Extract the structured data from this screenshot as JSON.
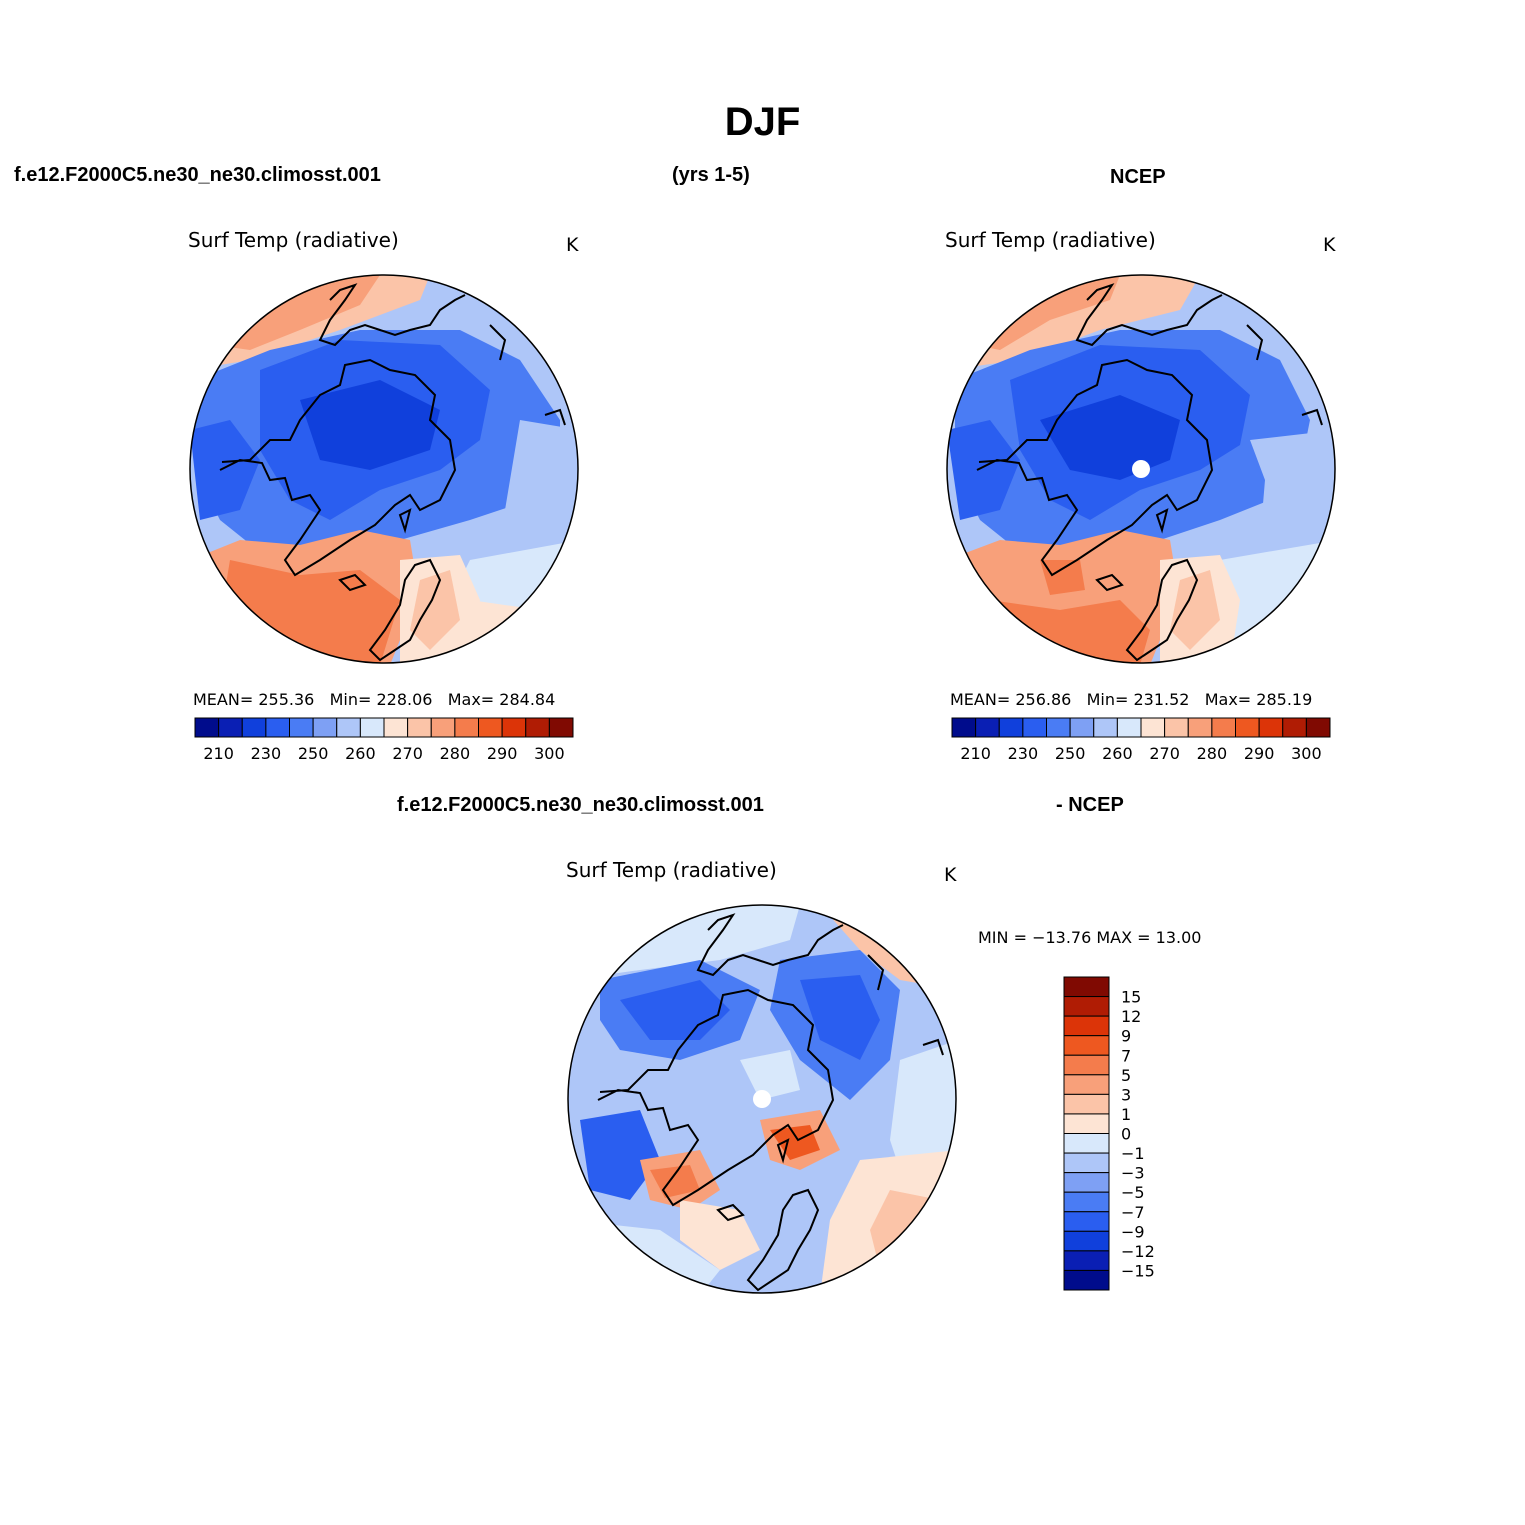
{
  "title": "DJF",
  "header": {
    "case_name": "f.e12.F2000C5.ne30_ne30.climosst.001",
    "years": "(yrs 1-5)",
    "obs_name": "NCEP"
  },
  "diff_header": {
    "case_name": "f.e12.F2000C5.ne30_ne30.climosst.001",
    "obs_name": "- NCEP"
  },
  "panels": {
    "model": {
      "title": "Surf Temp (radiative)",
      "unit": "K",
      "mean_label": "MEAN=",
      "mean_value": "255.36",
      "min_label": "Min=",
      "min_value": "228.06",
      "max_label": "Max=",
      "max_value": "284.84"
    },
    "obs": {
      "title": "Surf Temp (radiative)",
      "unit": "K",
      "mean_label": "MEAN=",
      "mean_value": "256.86",
      "min_label": "Min=",
      "min_value": "231.52",
      "max_label": "Max=",
      "max_value": "285.19"
    },
    "diff": {
      "title": "Surf Temp (radiative)",
      "unit": "K",
      "minmax_text": "MIN = −13.76 MAX =   13.00"
    }
  },
  "colorbars": {
    "abs_colors": [
      "#000c8c",
      "#0a1fb4",
      "#1040dc",
      "#2a5ef0",
      "#4a7cf4",
      "#7ea0f4",
      "#aec6f8",
      "#d8e8fb",
      "#fde4d4",
      "#fbc4a8",
      "#f8a07a",
      "#f47c4c",
      "#ee5820",
      "#dc3408",
      "#b01c04",
      "#800a02"
    ],
    "abs_ticks": [
      "210",
      "230",
      "250",
      "260",
      "270",
      "280",
      "290",
      "300"
    ],
    "diff_colors": [
      "#000c8c",
      "#0a1fb4",
      "#1040dc",
      "#2a5ef0",
      "#4a7cf4",
      "#7ea0f4",
      "#aec6f8",
      "#d8e8fb",
      "#fde4d4",
      "#fbc4a8",
      "#f8a07a",
      "#f47c4c",
      "#ee5820",
      "#dc3408",
      "#b01c04",
      "#800a02"
    ],
    "diff_ticks": [
      "15",
      "12",
      "9",
      "7",
      "5",
      "3",
      "1",
      "0",
      "−1",
      "−3",
      "−5",
      "−7",
      "−9",
      "−12",
      "−15"
    ]
  }
}
